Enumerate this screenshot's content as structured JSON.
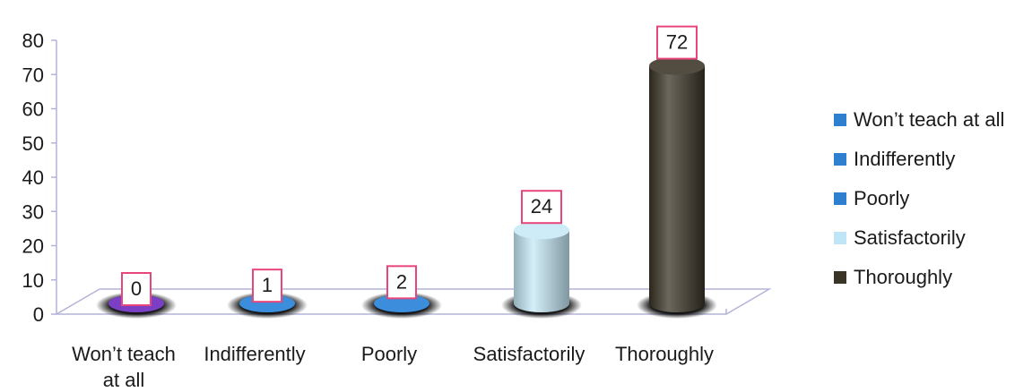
{
  "chart_data": {
    "type": "bar",
    "title": "",
    "xlabel": "",
    "ylabel": "",
    "categories": [
      "Won’t teach at all",
      "Indifferently",
      "Poorly",
      "Satisfactorily",
      "Thoroughly"
    ],
    "category_lines": [
      [
        "Won’t teach",
        "at all"
      ],
      [
        "Indifferently"
      ],
      [
        "Poorly"
      ],
      [
        "Satisfactorily"
      ],
      [
        "Thoroughly"
      ]
    ],
    "values": [
      0,
      1,
      2,
      24,
      72
    ],
    "data_labels": [
      "0",
      "1",
      "2",
      "24",
      "72"
    ],
    "ylim": [
      0,
      80
    ],
    "yticks": [
      0,
      10,
      20,
      30,
      40,
      50,
      60,
      70,
      80
    ],
    "colors": [
      "#7a3fc4",
      "#3c8ddc",
      "#3c8ddc",
      "#c6e9f7",
      "#3a3427"
    ],
    "legend_swatch_colors": [
      "#2f7fd1",
      "#2f7fd1",
      "#2f7fd1",
      "#bfe6f6",
      "#3a3427"
    ],
    "legend_position": "right",
    "grid": false,
    "data_label_border_color": "#e8457a"
  }
}
